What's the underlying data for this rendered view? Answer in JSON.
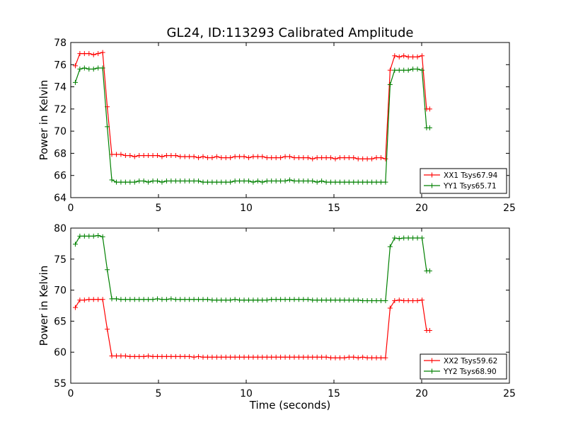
{
  "title": "GL24, ID:113293 Calibrated Amplitude",
  "xlabel": "Time (seconds)",
  "colors": {
    "red": "#ff0000",
    "green": "#008000"
  },
  "chart_data": [
    {
      "type": "line",
      "title": "GL24, ID:113293 Calibrated Amplitude",
      "xlabel": "",
      "ylabel": "Power in Kelvin",
      "xlim": [
        0,
        25
      ],
      "ylim": [
        64,
        78
      ],
      "xticks": [
        0,
        5,
        10,
        15,
        20,
        25
      ],
      "yticks": [
        64,
        66,
        68,
        70,
        72,
        74,
        76,
        78
      ],
      "grid": false,
      "legend": "bottom-right",
      "x": [
        0.26,
        0.52,
        0.78,
        1.04,
        1.3,
        1.56,
        1.82,
        2.08,
        2.34,
        2.6,
        2.86,
        3.12,
        3.38,
        3.64,
        3.9,
        4.16,
        4.42,
        4.68,
        4.94,
        5.2,
        5.46,
        5.72,
        5.98,
        6.24,
        6.5,
        6.76,
        7.02,
        7.28,
        7.54,
        7.8,
        8.06,
        8.32,
        8.58,
        8.84,
        9.1,
        9.36,
        9.62,
        9.88,
        10.14,
        10.4,
        10.66,
        10.92,
        11.18,
        11.44,
        11.7,
        11.96,
        12.22,
        12.48,
        12.74,
        13.0,
        13.26,
        13.52,
        13.78,
        14.04,
        14.3,
        14.56,
        14.82,
        15.08,
        15.34,
        15.6,
        15.86,
        16.12,
        16.38,
        16.64,
        16.9,
        17.16,
        17.42,
        17.68,
        17.94,
        18.2,
        18.46,
        18.72,
        18.98,
        19.24,
        19.5,
        19.76,
        20.02,
        20.28,
        20.46
      ],
      "series": [
        {
          "name": "XX1 Tsys67.94",
          "color": "#ff0000",
          "values": [
            75.9,
            77.0,
            77.0,
            77.0,
            76.9,
            77.0,
            77.1,
            72.2,
            67.9,
            67.9,
            67.9,
            67.8,
            67.8,
            67.7,
            67.8,
            67.8,
            67.8,
            67.8,
            67.8,
            67.7,
            67.8,
            67.8,
            67.8,
            67.7,
            67.7,
            67.7,
            67.7,
            67.6,
            67.7,
            67.6,
            67.6,
            67.7,
            67.6,
            67.6,
            67.6,
            67.7,
            67.7,
            67.7,
            67.6,
            67.7,
            67.7,
            67.7,
            67.6,
            67.6,
            67.6,
            67.6,
            67.7,
            67.7,
            67.6,
            67.6,
            67.6,
            67.6,
            67.5,
            67.6,
            67.6,
            67.6,
            67.6,
            67.5,
            67.6,
            67.6,
            67.6,
            67.6,
            67.5,
            67.5,
            67.5,
            67.5,
            67.6,
            67.6,
            67.5,
            75.5,
            76.8,
            76.7,
            76.8,
            76.7,
            76.7,
            76.7,
            76.8,
            72.0,
            72.0
          ]
        },
        {
          "name": "YY1 Tsys65.71",
          "color": "#008000",
          "values": [
            74.4,
            75.6,
            75.7,
            75.6,
            75.6,
            75.7,
            75.7,
            70.4,
            65.6,
            65.4,
            65.4,
            65.4,
            65.4,
            65.4,
            65.5,
            65.5,
            65.4,
            65.5,
            65.5,
            65.4,
            65.5,
            65.5,
            65.5,
            65.5,
            65.5,
            65.5,
            65.5,
            65.5,
            65.4,
            65.4,
            65.4,
            65.4,
            65.4,
            65.4,
            65.4,
            65.5,
            65.5,
            65.5,
            65.5,
            65.4,
            65.5,
            65.4,
            65.5,
            65.5,
            65.5,
            65.5,
            65.5,
            65.6,
            65.5,
            65.5,
            65.5,
            65.5,
            65.5,
            65.4,
            65.5,
            65.4,
            65.4,
            65.4,
            65.4,
            65.4,
            65.4,
            65.4,
            65.4,
            65.4,
            65.4,
            65.4,
            65.4,
            65.4,
            65.4,
            74.2,
            75.5,
            75.5,
            75.5,
            75.5,
            75.6,
            75.6,
            75.5,
            70.3,
            70.3
          ]
        }
      ]
    },
    {
      "type": "line",
      "title": "",
      "xlabel": "Time (seconds)",
      "ylabel": "Power in Kelvin",
      "xlim": [
        0,
        25
      ],
      "ylim": [
        55,
        80
      ],
      "xticks": [
        0,
        5,
        10,
        15,
        20,
        25
      ],
      "yticks": [
        55,
        60,
        65,
        70,
        75,
        80
      ],
      "grid": false,
      "legend": "bottom-right",
      "x": [
        0.26,
        0.52,
        0.78,
        1.04,
        1.3,
        1.56,
        1.82,
        2.08,
        2.34,
        2.6,
        2.86,
        3.12,
        3.38,
        3.64,
        3.9,
        4.16,
        4.42,
        4.68,
        4.94,
        5.2,
        5.46,
        5.72,
        5.98,
        6.24,
        6.5,
        6.76,
        7.02,
        7.28,
        7.54,
        7.8,
        8.06,
        8.32,
        8.58,
        8.84,
        9.1,
        9.36,
        9.62,
        9.88,
        10.14,
        10.4,
        10.66,
        10.92,
        11.18,
        11.44,
        11.7,
        11.96,
        12.22,
        12.48,
        12.74,
        13.0,
        13.26,
        13.52,
        13.78,
        14.04,
        14.3,
        14.56,
        14.82,
        15.08,
        15.34,
        15.6,
        15.86,
        16.12,
        16.38,
        16.64,
        16.9,
        17.16,
        17.42,
        17.68,
        17.94,
        18.2,
        18.46,
        18.72,
        18.98,
        19.24,
        19.5,
        19.76,
        20.02,
        20.28,
        20.46
      ],
      "series": [
        {
          "name": "XX2 Tsys59.62",
          "color": "#ff0000",
          "values": [
            67.2,
            68.4,
            68.4,
            68.5,
            68.5,
            68.5,
            68.5,
            63.7,
            59.4,
            59.4,
            59.4,
            59.4,
            59.3,
            59.3,
            59.3,
            59.3,
            59.4,
            59.3,
            59.3,
            59.3,
            59.3,
            59.3,
            59.3,
            59.3,
            59.3,
            59.3,
            59.2,
            59.3,
            59.2,
            59.2,
            59.2,
            59.2,
            59.2,
            59.2,
            59.2,
            59.2,
            59.2,
            59.2,
            59.2,
            59.2,
            59.2,
            59.2,
            59.2,
            59.2,
            59.2,
            59.2,
            59.2,
            59.2,
            59.2,
            59.2,
            59.2,
            59.2,
            59.2,
            59.2,
            59.2,
            59.2,
            59.1,
            59.1,
            59.1,
            59.1,
            59.2,
            59.2,
            59.1,
            59.2,
            59.1,
            59.1,
            59.1,
            59.1,
            59.1,
            67.1,
            68.3,
            68.4,
            68.3,
            68.3,
            68.3,
            68.3,
            68.4,
            63.5,
            63.5
          ]
        },
        {
          "name": "YY2 Tsys68.90",
          "color": "#008000",
          "values": [
            77.4,
            78.7,
            78.7,
            78.7,
            78.7,
            78.8,
            78.6,
            73.3,
            68.6,
            68.6,
            68.5,
            68.5,
            68.5,
            68.5,
            68.5,
            68.5,
            68.5,
            68.5,
            68.6,
            68.5,
            68.5,
            68.6,
            68.5,
            68.5,
            68.5,
            68.5,
            68.5,
            68.5,
            68.5,
            68.5,
            68.4,
            68.4,
            68.4,
            68.4,
            68.4,
            68.5,
            68.4,
            68.4,
            68.4,
            68.4,
            68.4,
            68.4,
            68.4,
            68.5,
            68.5,
            68.5,
            68.5,
            68.5,
            68.5,
            68.5,
            68.5,
            68.5,
            68.4,
            68.4,
            68.4,
            68.4,
            68.4,
            68.4,
            68.4,
            68.4,
            68.4,
            68.4,
            68.4,
            68.3,
            68.3,
            68.3,
            68.3,
            68.3,
            68.3,
            77.0,
            78.4,
            78.3,
            78.4,
            78.4,
            78.4,
            78.4,
            78.4,
            73.1,
            73.1
          ]
        }
      ]
    }
  ]
}
